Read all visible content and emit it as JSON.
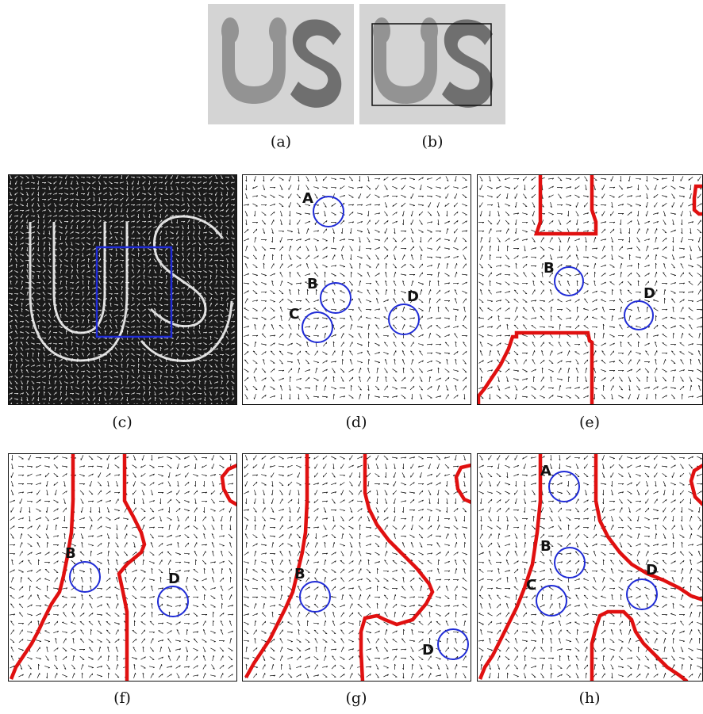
{
  "figure": {
    "captions": {
      "a": "(a)",
      "b": "(b)",
      "c": "(c)",
      "d": "(d)",
      "e": "(e)",
      "f": "(f)",
      "g": "(g)",
      "h": "(h)"
    },
    "marker_labels": {
      "d": [
        "A",
        "B",
        "C",
        "D"
      ],
      "e": [
        "B",
        "D"
      ],
      "f": [
        "B",
        "D"
      ],
      "g": [
        "B",
        "D"
      ],
      "h": [
        "A",
        "B",
        "C",
        "D"
      ]
    },
    "colors": {
      "marker_circle": "#1f2bd6",
      "region_contour": "#e01010",
      "roi_box": "#1f2bd6",
      "shape_u": "#939393",
      "shape_s": "#6f6f6f",
      "image_background": "#d4d4d4"
    }
  }
}
